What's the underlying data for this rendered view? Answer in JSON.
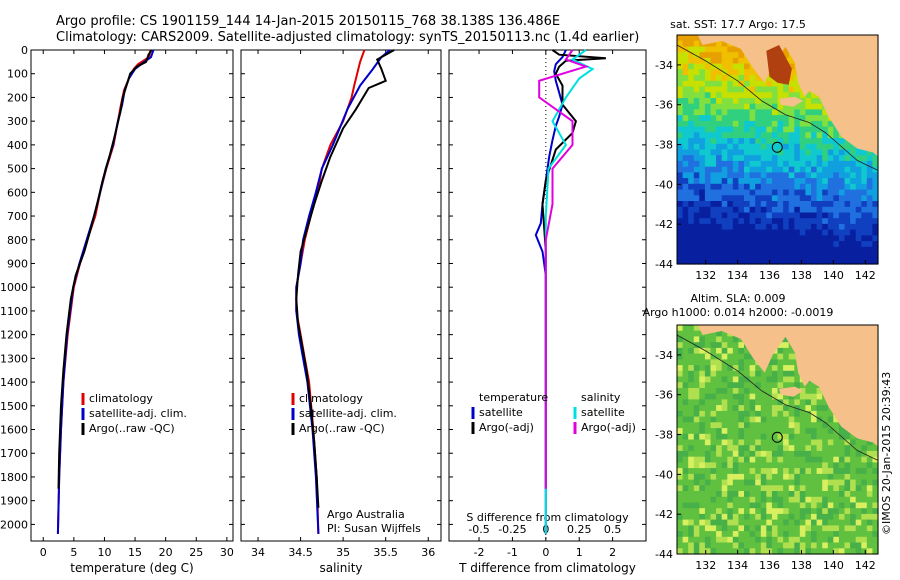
{
  "header": {
    "line1": "Argo profile: CS 1901159_144 14-Jan-2015 20150115_768 38.138S 136.486E",
    "line2": "Climatology: CARS2009. Satellite-adjusted climatology: synTS_20150113.nc (1.4d earlier)"
  },
  "colors": {
    "climatology": "#e00000",
    "satellite": "#0000cc",
    "argo": "#000000",
    "sal_satellite": "#00e0e0",
    "sal_argo": "#e000e0"
  },
  "chart_data": [
    {
      "type": "line",
      "id": "temperature",
      "xlabel": "temperature (deg C)",
      "ylabel": "",
      "xlim": [
        -2,
        31
      ],
      "ylim": [
        0,
        2070
      ],
      "xticks": [
        "0",
        "5",
        "10",
        "15",
        "20",
        "25",
        "30"
      ],
      "yticks": [
        "0",
        "100",
        "200",
        "300",
        "400",
        "500",
        "600",
        "700",
        "800",
        "900",
        "1000",
        "1100",
        "1200",
        "1300",
        "1400",
        "1500",
        "1600",
        "1700",
        "1800",
        "1900",
        "2000"
      ],
      "legend": [
        "climatology",
        "satellite-adj. clim.",
        "Argo(..raw -QC)"
      ],
      "series": [
        {
          "name": "climatology",
          "color": "#e00000",
          "points": [
            [
              17.5,
              0
            ],
            [
              17.3,
              30
            ],
            [
              15.5,
              60
            ],
            [
              14.8,
              80
            ],
            [
              14.0,
              120
            ],
            [
              13.2,
              170
            ],
            [
              12.7,
              230
            ],
            [
              12.2,
              300
            ],
            [
              11.5,
              400
            ],
            [
              10.3,
              500
            ],
            [
              9.3,
              600
            ],
            [
              8.5,
              700
            ],
            [
              7.2,
              800
            ],
            [
              6.0,
              900
            ],
            [
              5.0,
              1000
            ],
            [
              4.0,
              1200
            ],
            [
              3.3,
              1400
            ],
            [
              2.9,
              1600
            ],
            [
              2.6,
              1800
            ],
            [
              2.4,
              2040
            ]
          ]
        },
        {
          "name": "satellite-adj. clim.",
          "color": "#0000cc",
          "points": [
            [
              18.0,
              0
            ],
            [
              17.6,
              30
            ],
            [
              16.0,
              60
            ],
            [
              15.0,
              80
            ],
            [
              14.0,
              120
            ],
            [
              13.3,
              170
            ],
            [
              12.9,
              230
            ],
            [
              12.2,
              300
            ],
            [
              11.4,
              400
            ],
            [
              10.2,
              500
            ],
            [
              9.3,
              600
            ],
            [
              8.3,
              700
            ],
            [
              7.1,
              800
            ],
            [
              5.9,
              900
            ],
            [
              4.9,
              1000
            ],
            [
              3.9,
              1200
            ],
            [
              3.3,
              1400
            ],
            [
              2.9,
              1600
            ],
            [
              2.6,
              1800
            ],
            [
              2.4,
              2040
            ]
          ]
        },
        {
          "name": "Argo(..raw -QC)",
          "color": "#000000",
          "points": [
            [
              17.7,
              0
            ],
            [
              17.2,
              20
            ],
            [
              16.8,
              50
            ],
            [
              15.3,
              70
            ],
            [
              14.2,
              100
            ],
            [
              13.6,
              150
            ],
            [
              13.0,
              200
            ],
            [
              12.6,
              260
            ],
            [
              11.8,
              350
            ],
            [
              10.8,
              450
            ],
            [
              9.7,
              550
            ],
            [
              8.8,
              650
            ],
            [
              7.8,
              750
            ],
            [
              6.7,
              850
            ],
            [
              5.3,
              950
            ],
            [
              4.5,
              1050
            ],
            [
              3.8,
              1200
            ],
            [
              3.3,
              1350
            ],
            [
              2.9,
              1500
            ],
            [
              2.6,
              1700
            ],
            [
              2.5,
              1850
            ]
          ]
        }
      ]
    },
    {
      "type": "line",
      "id": "salinity",
      "xlabel": "salinity",
      "ylabel": "",
      "xlim": [
        33.8,
        36.15
      ],
      "ylim": [
        0,
        2070
      ],
      "xticks": [
        "34",
        "34.5",
        "35",
        "35.5",
        "36"
      ],
      "legend": [
        "climatology",
        "satellite-adj. clim.",
        "Argo(..raw -QC)"
      ],
      "annotation": [
        "Argo Australia",
        "PI: Susan Wijffels"
      ],
      "series": [
        {
          "name": "climatology",
          "color": "#e00000",
          "points": [
            [
              35.25,
              0
            ],
            [
              35.2,
              50
            ],
            [
              35.13,
              150
            ],
            [
              35.1,
              200
            ],
            [
              35.0,
              300
            ],
            [
              34.85,
              400
            ],
            [
              34.75,
              500
            ],
            [
              34.7,
              600
            ],
            [
              34.62,
              700
            ],
            [
              34.55,
              800
            ],
            [
              34.5,
              900
            ],
            [
              34.45,
              1000
            ],
            [
              34.45,
              1100
            ],
            [
              34.5,
              1200
            ],
            [
              34.55,
              1300
            ],
            [
              34.6,
              1400
            ],
            [
              34.65,
              1600
            ],
            [
              34.69,
              1800
            ],
            [
              34.71,
              2040
            ]
          ]
        },
        {
          "name": "satellite-adj. clim.",
          "color": "#0000cc",
          "points": [
            [
              35.55,
              0
            ],
            [
              35.45,
              30
            ],
            [
              35.35,
              80
            ],
            [
              35.2,
              150
            ],
            [
              35.05,
              250
            ],
            [
              34.88,
              400
            ],
            [
              34.75,
              500
            ],
            [
              34.68,
              600
            ],
            [
              34.6,
              700
            ],
            [
              34.53,
              800
            ],
            [
              34.5,
              900
            ],
            [
              34.45,
              1000
            ],
            [
              34.45,
              1100
            ],
            [
              34.48,
              1200
            ],
            [
              34.53,
              1300
            ],
            [
              34.58,
              1400
            ],
            [
              34.64,
              1600
            ],
            [
              34.68,
              1800
            ],
            [
              34.71,
              2040
            ]
          ]
        },
        {
          "name": "Argo(..raw -QC)",
          "color": "#000000",
          "points": [
            [
              35.6,
              0
            ],
            [
              35.4,
              40
            ],
            [
              35.45,
              80
            ],
            [
              35.5,
              130
            ],
            [
              35.3,
              160
            ],
            [
              35.15,
              250
            ],
            [
              35.0,
              330
            ],
            [
              34.85,
              450
            ],
            [
              34.75,
              550
            ],
            [
              34.66,
              650
            ],
            [
              34.58,
              750
            ],
            [
              34.5,
              850
            ],
            [
              34.47,
              950
            ],
            [
              34.45,
              1050
            ],
            [
              34.47,
              1150
            ],
            [
              34.52,
              1250
            ],
            [
              34.57,
              1350
            ],
            [
              34.62,
              1500
            ],
            [
              34.66,
              1650
            ],
            [
              34.69,
              1800
            ],
            [
              34.71,
              1930
            ]
          ]
        }
      ]
    },
    {
      "type": "line",
      "id": "difference",
      "xlabel": "T difference from climatology",
      "xlabel_top": "S difference from climatology",
      "xlim": [
        -2.9,
        3.0
      ],
      "ylim": [
        0,
        2070
      ],
      "xticks": [
        "-2",
        "-1",
        "0",
        "1",
        "2"
      ],
      "sticks": [
        "-0.5",
        "-0.25",
        "0",
        "0.25",
        "0.5"
      ],
      "legend_t": [
        "temperature",
        "satellite",
        "Argo(-adj)"
      ],
      "legend_s": [
        "salinity",
        "satellite",
        "Argo(-adj)"
      ],
      "series": [
        {
          "name": "satellite",
          "kind": "T",
          "color": "#0000cc",
          "points": [
            [
              0.6,
              0
            ],
            [
              0.5,
              30
            ],
            [
              0.3,
              60
            ],
            [
              0.25,
              90
            ],
            [
              0.3,
              130
            ],
            [
              0.4,
              180
            ],
            [
              0.5,
              230
            ],
            [
              0.4,
              280
            ],
            [
              0.3,
              320
            ],
            [
              0.2,
              380
            ],
            [
              0.1,
              450
            ],
            [
              0,
              550
            ],
            [
              -0.1,
              650
            ],
            [
              -0.15,
              730
            ],
            [
              -0.3,
              780
            ],
            [
              -0.1,
              850
            ],
            [
              0,
              950
            ],
            [
              0,
              1100
            ],
            [
              0,
              1400
            ],
            [
              0,
              2040
            ]
          ]
        },
        {
          "name": "Argo(-adj)",
          "kind": "T",
          "color": "#000000",
          "points": [
            [
              0.2,
              0
            ],
            [
              0.4,
              20
            ],
            [
              1.8,
              35
            ],
            [
              0.6,
              45
            ],
            [
              0.4,
              70
            ],
            [
              0.3,
              100
            ],
            [
              0.5,
              150
            ],
            [
              0.5,
              230
            ],
            [
              0.9,
              300
            ],
            [
              0.8,
              350
            ],
            [
              0.3,
              420
            ],
            [
              0,
              550
            ],
            [
              -0.1,
              650
            ],
            [
              -0.05,
              750
            ],
            [
              0,
              850
            ],
            [
              0,
              1000
            ],
            [
              0,
              1200
            ],
            [
              0,
              1850
            ]
          ]
        },
        {
          "name": "satellite",
          "kind": "S",
          "color": "#00e0e0",
          "points": [
            [
              0.3,
              0
            ],
            [
              0.2,
              40
            ],
            [
              0.35,
              80
            ],
            [
              0.25,
              120
            ],
            [
              0.15,
              200
            ],
            [
              0.05,
              300
            ],
            [
              0.15,
              400
            ],
            [
              0.02,
              500
            ],
            [
              0,
              700
            ],
            [
              0,
              1000
            ],
            [
              0,
              1400
            ],
            [
              0,
              2040
            ]
          ]
        },
        {
          "name": "Argo(-adj)",
          "kind": "S",
          "color": "#e000e0",
          "points": [
            [
              0.2,
              0
            ],
            [
              0.15,
              40
            ],
            [
              0.3,
              70
            ],
            [
              -0.05,
              130
            ],
            [
              -0.05,
              200
            ],
            [
              0.2,
              300
            ],
            [
              0.2,
              400
            ],
            [
              0.05,
              500
            ],
            [
              0.05,
              650
            ],
            [
              0,
              800
            ],
            [
              0,
              1000
            ],
            [
              0,
              1850
            ]
          ]
        }
      ]
    },
    {
      "type": "heatmap",
      "id": "map-sst",
      "title": "sat. SST: 17.7  Argo: 17.5",
      "xticks": [
        "132",
        "134",
        "136",
        "138",
        "140",
        "142"
      ],
      "yticks": [
        "-34",
        "-36",
        "-38",
        "-40",
        "-42",
        "-44"
      ],
      "xlim": [
        130.2,
        142.8
      ],
      "ylim": [
        -44,
        -32.5
      ],
      "argo_position": [
        136.486,
        -38.138
      ]
    },
    {
      "type": "heatmap",
      "id": "map-sla",
      "title": "Altim. SLA: 0.009",
      "subtitle": "Argo h1000: 0.014  h2000: -0.0019",
      "xticks": [
        "132",
        "134",
        "136",
        "138",
        "140",
        "142"
      ],
      "yticks": [
        "-34",
        "-36",
        "-38",
        "-40",
        "-42",
        "-44"
      ],
      "xlim": [
        130.2,
        142.8
      ],
      "ylim": [
        -44,
        -32.5
      ],
      "argo_position": [
        136.486,
        -38.138
      ]
    }
  ],
  "credit": "©IMOS 20-Jan-2015 20:39:43"
}
